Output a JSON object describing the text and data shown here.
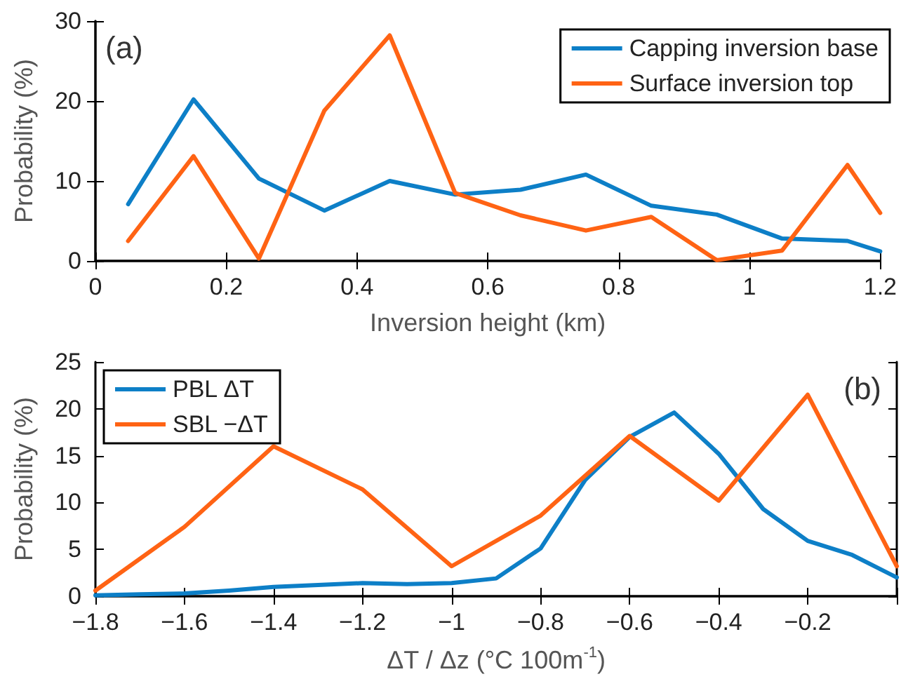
{
  "chart_data": [
    {
      "type": "line",
      "xlabel": "Inversion height (km)",
      "ylabel": "Probability (%)",
      "annotations": [
        "(a)"
      ],
      "legend": "top right",
      "grid": false,
      "marker": "none",
      "line_style": "solid",
      "xlim": [
        0,
        1.2
      ],
      "xticks": [
        0,
        0.2,
        0.4,
        0.6,
        0.8,
        1,
        1.2
      ],
      "ylim": [
        0,
        30
      ],
      "yticks": [
        0,
        10,
        20,
        30
      ],
      "series": [
        {
          "name": "Capping inversion base",
          "color": "#0d7fc7",
          "x": [
            0.05,
            0.15,
            0.25,
            0.35,
            0.45,
            0.55,
            0.65,
            0.75,
            0.85,
            0.95,
            1.05,
            1.15,
            1.2
          ],
          "values": [
            7.1,
            20.2,
            10.3,
            6.3,
            10.0,
            8.3,
            8.9,
            10.8,
            6.9,
            5.8,
            2.8,
            2.5,
            1.2
          ]
        },
        {
          "name": "Surface inversion top",
          "color": "#ff6314",
          "x": [
            0.05,
            0.15,
            0.25,
            0.35,
            0.45,
            0.55,
            0.65,
            0.75,
            0.85,
            0.95,
            1.05,
            1.15,
            1.2
          ],
          "values": [
            2.5,
            13.1,
            0.3,
            18.8,
            28.2,
            8.5,
            5.7,
            3.8,
            5.5,
            0.1,
            1.3,
            12.0,
            6.0
          ]
        }
      ]
    },
    {
      "type": "line",
      "xlabel": "ΔT / Δz (°C 100m$^{-1}$)",
      "ylabel": "Probability (%)",
      "annotations": [
        "(b)"
      ],
      "legend": "top left",
      "grid": false,
      "marker": "none",
      "line_style": "solid",
      "xlim": [
        -1.8,
        0
      ],
      "xticks": [
        {
          "value": -1.8,
          "label": "−1.8"
        },
        {
          "value": -1.6,
          "label": "−1.6"
        },
        {
          "value": -1.4,
          "label": "−1.4"
        },
        {
          "value": -1.2,
          "label": "−1.2"
        },
        {
          "value": -1,
          "label": "−1"
        },
        {
          "value": -0.8,
          "label": "−0.8"
        },
        {
          "value": -0.6,
          "label": "−0.6"
        },
        {
          "value": -0.4,
          "label": "−0.4"
        },
        {
          "value": -0.2,
          "label": "−0.2"
        },
        {
          "value": 0,
          "label": null
        }
      ],
      "ylim": [
        0,
        25
      ],
      "yticks": [
        0,
        5,
        10,
        15,
        20,
        25
      ],
      "series": [
        {
          "name": "PBL ΔT",
          "color": "#0d7fc7",
          "x": [
            -1.8,
            -1.7,
            -1.6,
            -1.5,
            -1.4,
            -1.3,
            -1.2,
            -1.1,
            -1.0,
            -0.9,
            -0.8,
            -0.7,
            -0.6,
            -0.5,
            -0.4,
            -0.3,
            -0.2,
            -0.1,
            0
          ],
          "values": [
            0.1,
            0.2,
            0.3,
            0.6,
            1.0,
            1.2,
            1.4,
            1.3,
            1.4,
            1.9,
            5.1,
            12.4,
            17.0,
            19.6,
            15.2,
            9.3,
            5.9,
            4.4,
            2.0
          ]
        },
        {
          "name": "SBL −ΔT",
          "color": "#ff6314",
          "x": [
            -1.8,
            -1.6,
            -1.4,
            -1.2,
            -1.0,
            -0.8,
            -0.6,
            -0.4,
            -0.2,
            0
          ],
          "values": [
            0.6,
            7.4,
            16.0,
            11.4,
            3.2,
            8.6,
            17.1,
            10.2,
            21.5,
            3.2
          ]
        }
      ]
    }
  ]
}
